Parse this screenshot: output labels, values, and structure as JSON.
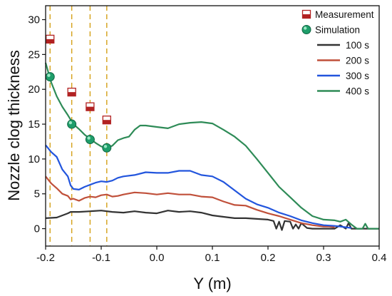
{
  "chart_data": {
    "type": "line",
    "title": "",
    "xlabel": "Y (m)",
    "ylabel": "Nozzle clog thickness",
    "xlim": [
      -0.2,
      0.4
    ],
    "ylim": [
      -2.5,
      32
    ],
    "x_ticks": [
      "-0.2",
      "-0.1",
      "0.0",
      "0.1",
      "0.2",
      "0.3",
      "0.4"
    ],
    "y_ticks": [
      "0",
      "5",
      "10",
      "15",
      "20",
      "25",
      "30"
    ],
    "grid": false,
    "legend_position": "top-right",
    "series": [
      {
        "name": "100 s",
        "color": "#333333",
        "points": [
          [
            -0.2,
            1.5
          ],
          [
            -0.18,
            1.6
          ],
          [
            -0.16,
            2.2
          ],
          [
            -0.155,
            2.4
          ],
          [
            -0.14,
            2.4
          ],
          [
            -0.12,
            2.5
          ],
          [
            -0.1,
            2.6
          ],
          [
            -0.08,
            2.4
          ],
          [
            -0.06,
            2.3
          ],
          [
            -0.04,
            2.5
          ],
          [
            -0.02,
            2.3
          ],
          [
            0.0,
            2.2
          ],
          [
            0.02,
            2.6
          ],
          [
            0.04,
            2.4
          ],
          [
            0.06,
            2.5
          ],
          [
            0.08,
            2.3
          ],
          [
            0.1,
            1.9
          ],
          [
            0.12,
            1.7
          ],
          [
            0.14,
            1.5
          ],
          [
            0.16,
            1.5
          ],
          [
            0.18,
            1.4
          ],
          [
            0.2,
            1.3
          ],
          [
            0.21,
            1.1
          ],
          [
            0.215,
            0.0
          ],
          [
            0.22,
            1.0
          ],
          [
            0.225,
            -0.2
          ],
          [
            0.23,
            1.1
          ],
          [
            0.24,
            1.0
          ],
          [
            0.245,
            0.0
          ],
          [
            0.25,
            0.6
          ],
          [
            0.255,
            0.0
          ],
          [
            0.26,
            0.8
          ],
          [
            0.27,
            0.1
          ],
          [
            0.28,
            0.0
          ],
          [
            0.3,
            0.0
          ],
          [
            0.32,
            0.0
          ],
          [
            0.33,
            0.5
          ],
          [
            0.34,
            0.0
          ],
          [
            0.345,
            0.8
          ],
          [
            0.35,
            0.0
          ],
          [
            0.36,
            0.0
          ],
          [
            0.38,
            0.0
          ],
          [
            0.4,
            0.0
          ]
        ]
      },
      {
        "name": "200 s",
        "color": "#c0503a",
        "points": [
          [
            -0.2,
            7.5
          ],
          [
            -0.19,
            6.5
          ],
          [
            -0.18,
            5.8
          ],
          [
            -0.17,
            5.0
          ],
          [
            -0.16,
            4.7
          ],
          [
            -0.155,
            4.2
          ],
          [
            -0.15,
            4.3
          ],
          [
            -0.14,
            4.0
          ],
          [
            -0.13,
            4.4
          ],
          [
            -0.12,
            4.6
          ],
          [
            -0.11,
            4.5
          ],
          [
            -0.1,
            4.8
          ],
          [
            -0.09,
            4.9
          ],
          [
            -0.08,
            4.6
          ],
          [
            -0.07,
            4.7
          ],
          [
            -0.06,
            4.9
          ],
          [
            -0.04,
            5.2
          ],
          [
            -0.02,
            5.1
          ],
          [
            0.0,
            4.9
          ],
          [
            0.02,
            5.1
          ],
          [
            0.04,
            4.9
          ],
          [
            0.06,
            4.9
          ],
          [
            0.08,
            4.6
          ],
          [
            0.1,
            4.5
          ],
          [
            0.12,
            3.9
          ],
          [
            0.14,
            3.4
          ],
          [
            0.16,
            3.3
          ],
          [
            0.18,
            2.7
          ],
          [
            0.2,
            2.2
          ],
          [
            0.22,
            1.8
          ],
          [
            0.24,
            1.3
          ],
          [
            0.26,
            0.8
          ],
          [
            0.28,
            0.5
          ],
          [
            0.3,
            0.3
          ],
          [
            0.31,
            0.3
          ],
          [
            0.32,
            0.2
          ]
        ]
      },
      {
        "name": "300 s",
        "color": "#2255dd",
        "points": [
          [
            -0.2,
            12.0
          ],
          [
            -0.19,
            11.0
          ],
          [
            -0.18,
            10.3
          ],
          [
            -0.17,
            8.5
          ],
          [
            -0.16,
            7.5
          ],
          [
            -0.155,
            6.2
          ],
          [
            -0.15,
            5.7
          ],
          [
            -0.14,
            5.6
          ],
          [
            -0.13,
            6.0
          ],
          [
            -0.12,
            6.3
          ],
          [
            -0.11,
            6.6
          ],
          [
            -0.1,
            6.8
          ],
          [
            -0.09,
            6.7
          ],
          [
            -0.08,
            6.9
          ],
          [
            -0.07,
            7.3
          ],
          [
            -0.06,
            7.5
          ],
          [
            -0.04,
            7.7
          ],
          [
            -0.02,
            8.1
          ],
          [
            0.0,
            8.0
          ],
          [
            0.02,
            8.0
          ],
          [
            0.04,
            8.3
          ],
          [
            0.06,
            8.3
          ],
          [
            0.08,
            7.7
          ],
          [
            0.1,
            7.5
          ],
          [
            0.12,
            6.7
          ],
          [
            0.14,
            5.5
          ],
          [
            0.16,
            4.3
          ],
          [
            0.18,
            3.5
          ],
          [
            0.2,
            3.0
          ],
          [
            0.22,
            2.3
          ],
          [
            0.24,
            1.8
          ],
          [
            0.26,
            1.2
          ],
          [
            0.28,
            0.8
          ],
          [
            0.3,
            0.5
          ],
          [
            0.32,
            0.4
          ],
          [
            0.33,
            0.3
          ],
          [
            0.34,
            0.2
          ],
          [
            0.35,
            0.1
          ]
        ]
      },
      {
        "name": "400 s",
        "color": "#2e8b57",
        "points": [
          [
            -0.2,
            23.8
          ],
          [
            -0.19,
            21.0
          ],
          [
            -0.18,
            19.0
          ],
          [
            -0.17,
            17.5
          ],
          [
            -0.16,
            16.3
          ],
          [
            -0.15,
            15.0
          ],
          [
            -0.14,
            14.3
          ],
          [
            -0.13,
            13.5
          ],
          [
            -0.12,
            12.9
          ],
          [
            -0.11,
            12.3
          ],
          [
            -0.1,
            11.8
          ],
          [
            -0.09,
            11.6
          ],
          [
            -0.08,
            11.9
          ],
          [
            -0.07,
            12.7
          ],
          [
            -0.06,
            13.0
          ],
          [
            -0.05,
            13.2
          ],
          [
            -0.04,
            14.2
          ],
          [
            -0.03,
            14.8
          ],
          [
            -0.02,
            14.8
          ],
          [
            0.0,
            14.6
          ],
          [
            0.02,
            14.4
          ],
          [
            0.04,
            15.0
          ],
          [
            0.06,
            15.2
          ],
          [
            0.08,
            15.3
          ],
          [
            0.1,
            15.1
          ],
          [
            0.12,
            14.2
          ],
          [
            0.14,
            13.2
          ],
          [
            0.16,
            11.9
          ],
          [
            0.18,
            10.0
          ],
          [
            0.2,
            8.0
          ],
          [
            0.22,
            6.0
          ],
          [
            0.24,
            4.5
          ],
          [
            0.26,
            3.0
          ],
          [
            0.28,
            1.8
          ],
          [
            0.3,
            1.3
          ],
          [
            0.32,
            1.2
          ],
          [
            0.33,
            1.0
          ],
          [
            0.34,
            1.3
          ],
          [
            0.35,
            0.6
          ],
          [
            0.36,
            0.0
          ],
          [
            0.37,
            0.0
          ],
          [
            0.375,
            0.7
          ],
          [
            0.38,
            0.0
          ],
          [
            0.39,
            0.0
          ],
          [
            0.4,
            0.0
          ]
        ]
      },
      {
        "name": "Measurement",
        "type": "scatter",
        "color": "#b22222",
        "points": [
          [
            -0.192,
            27.2
          ],
          [
            -0.153,
            19.6
          ],
          [
            -0.12,
            17.5
          ],
          [
            -0.09,
            15.6
          ]
        ]
      },
      {
        "name": "Simulation",
        "type": "scatter",
        "color": "#1e9e6a",
        "points": [
          [
            -0.192,
            21.8
          ],
          [
            -0.153,
            15.0
          ],
          [
            -0.12,
            12.8
          ],
          [
            -0.09,
            11.6
          ]
        ]
      }
    ],
    "vlines": {
      "color": "#d4a017",
      "x": [
        -0.192,
        -0.153,
        -0.12,
        -0.09
      ]
    }
  }
}
